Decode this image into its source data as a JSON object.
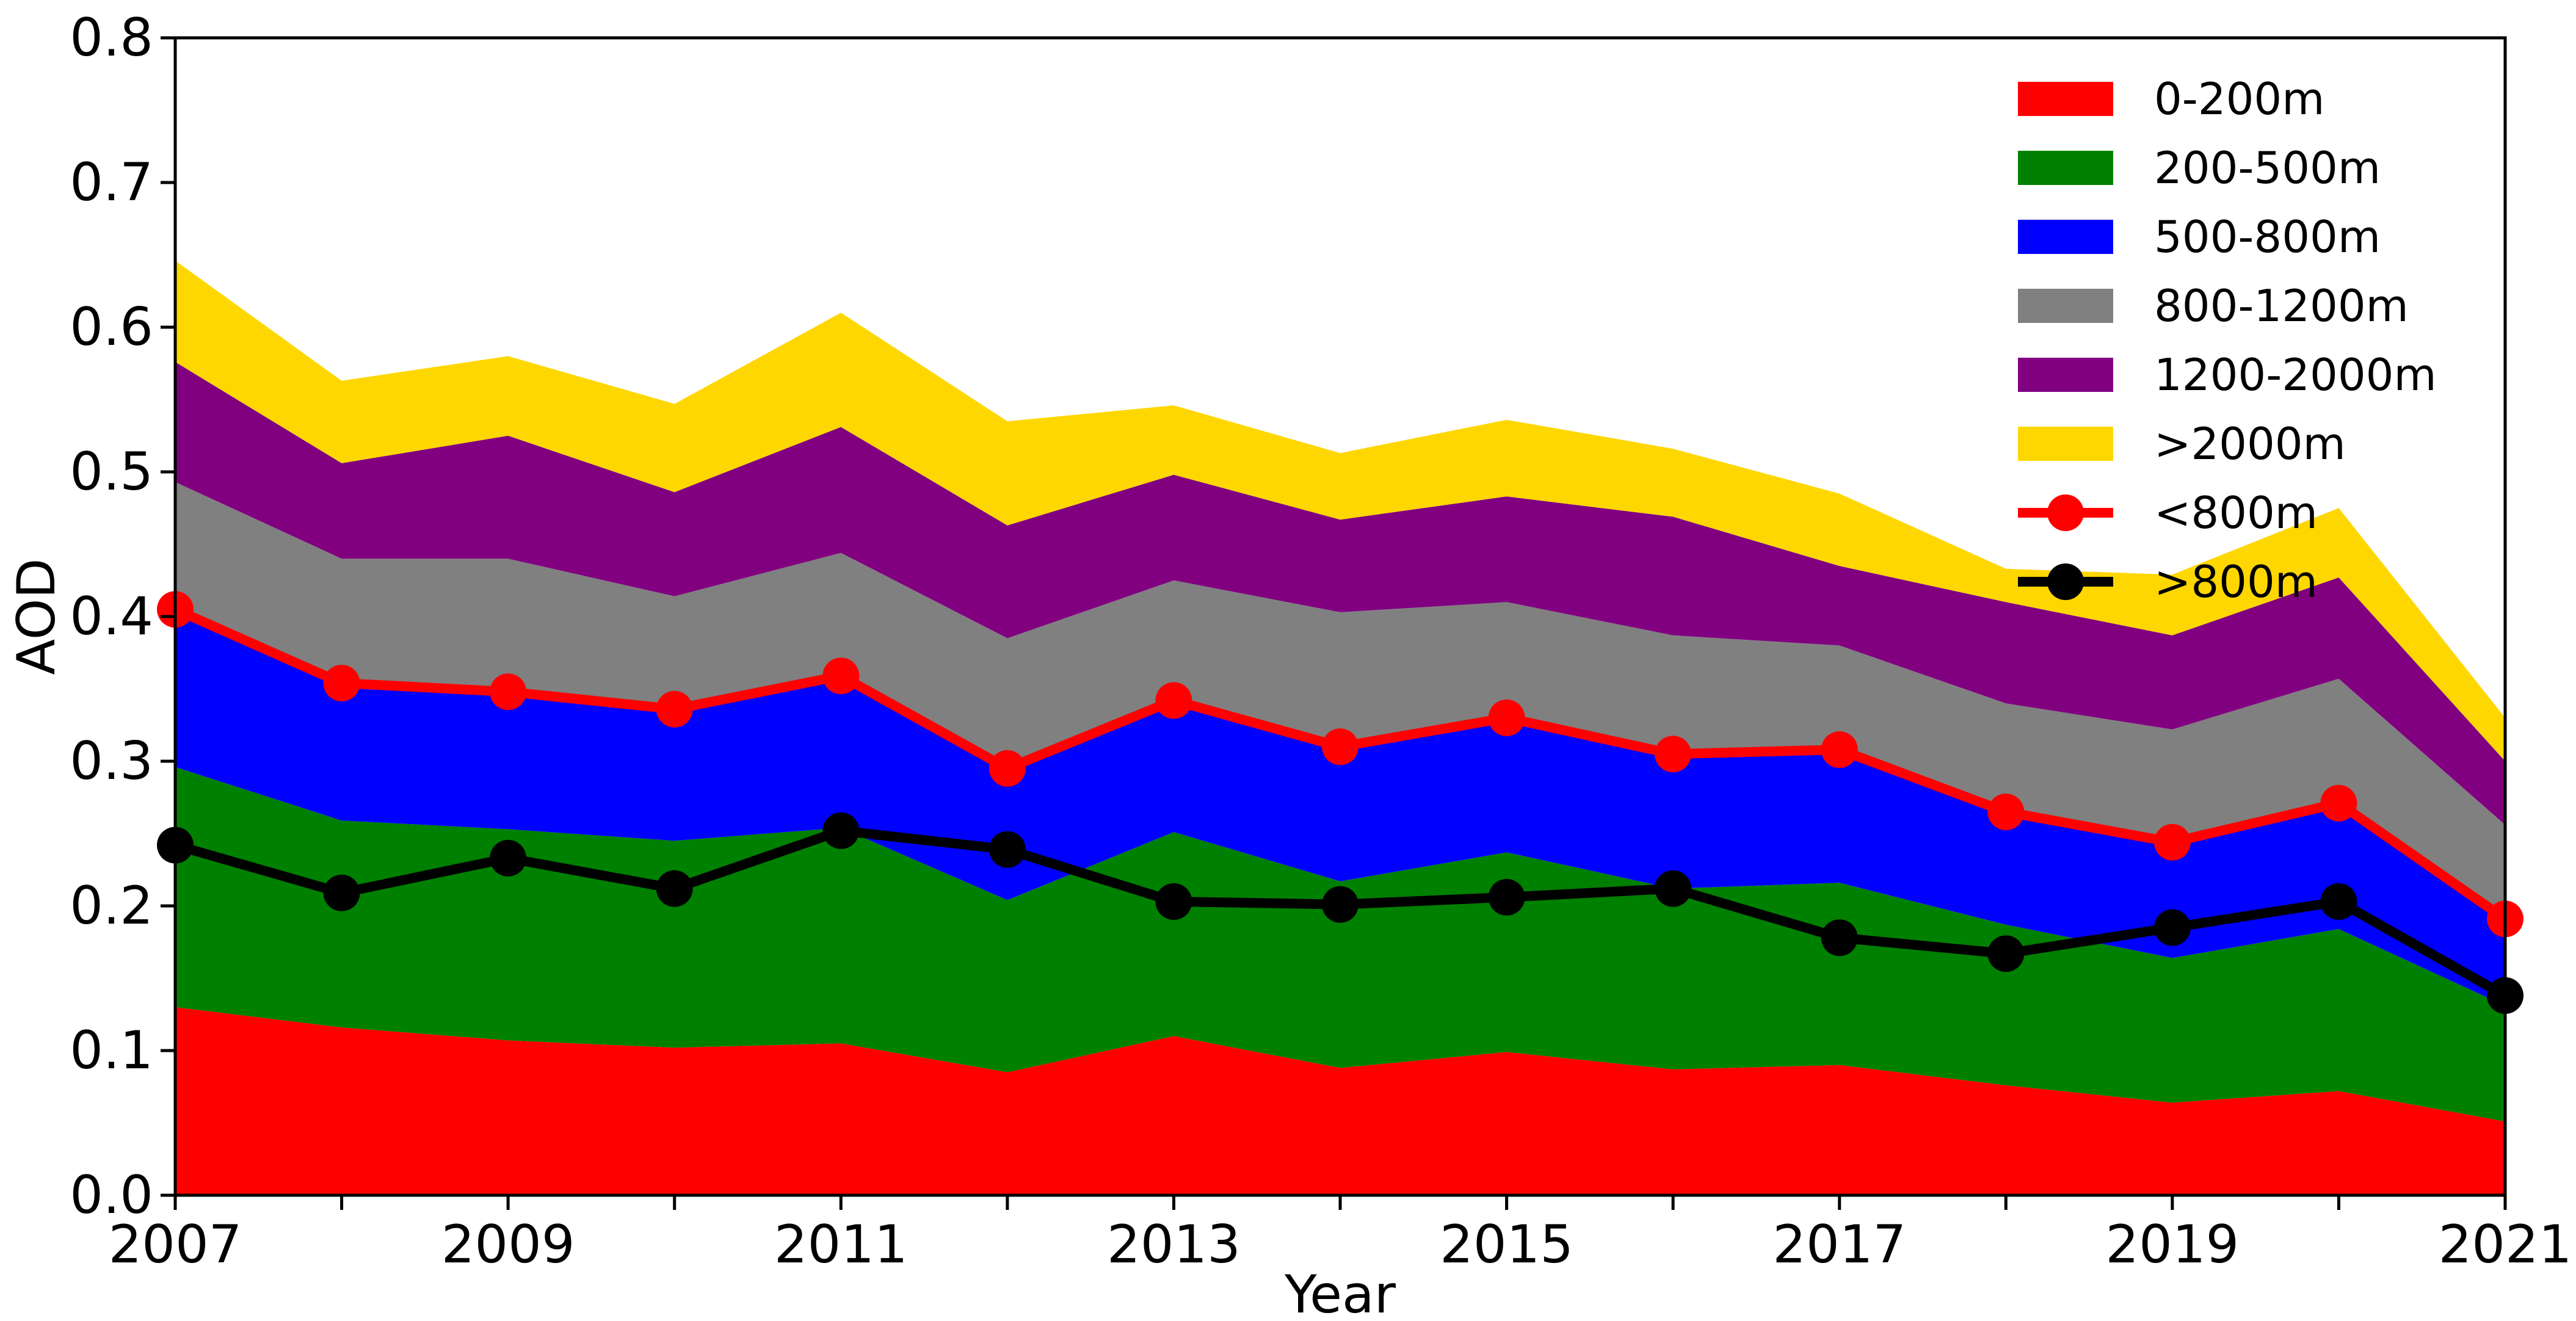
{
  "chart_data": {
    "type": "area",
    "stacked": true,
    "title": "",
    "xlabel": "Year",
    "ylabel": "AOD",
    "xlim": [
      2007,
      2021
    ],
    "ylim": [
      0.0,
      0.8
    ],
    "x": [
      2007,
      2008,
      2009,
      2010,
      2011,
      2012,
      2013,
      2014,
      2015,
      2016,
      2017,
      2018,
      2019,
      2020,
      2021
    ],
    "xticks": [
      "2007",
      "2009",
      "2011",
      "2013",
      "2015",
      "2017",
      "2019",
      "2021"
    ],
    "yticks": [
      "0.0",
      "0.1",
      "0.2",
      "0.3",
      "0.4",
      "0.5",
      "0.6",
      "0.7",
      "0.8"
    ],
    "legend_position": "top-right",
    "grid": false,
    "series": [
      {
        "name": "0-200m",
        "color": "#ff0000",
        "values": [
          0.13,
          0.116,
          0.107,
          0.102,
          0.105,
          0.085,
          0.11,
          0.088,
          0.099,
          0.087,
          0.09,
          0.076,
          0.064,
          0.072,
          0.051
        ]
      },
      {
        "name": "200-500m",
        "color": "#008000",
        "values": [
          0.166,
          0.143,
          0.146,
          0.143,
          0.149,
          0.119,
          0.141,
          0.129,
          0.138,
          0.125,
          0.126,
          0.111,
          0.1,
          0.112,
          0.08
        ]
      },
      {
        "name": "500-800m",
        "color": "#0000ff",
        "values": [
          0.109,
          0.095,
          0.095,
          0.091,
          0.105,
          0.091,
          0.091,
          0.093,
          0.093,
          0.093,
          0.092,
          0.078,
          0.08,
          0.087,
          0.06
        ]
      },
      {
        "name": "800-1200m",
        "color": "#808080",
        "values": [
          0.088,
          0.086,
          0.092,
          0.078,
          0.085,
          0.09,
          0.083,
          0.093,
          0.08,
          0.082,
          0.072,
          0.075,
          0.078,
          0.086,
          0.065
        ]
      },
      {
        "name": "1200-2000m",
        "color": "#800080",
        "values": [
          0.083,
          0.066,
          0.085,
          0.072,
          0.087,
          0.078,
          0.073,
          0.064,
          0.073,
          0.082,
          0.055,
          0.07,
          0.065,
          0.07,
          0.044
        ]
      },
      {
        "name": ">2000m",
        "color": "#ffd700",
        "values": [
          0.07,
          0.057,
          0.055,
          0.061,
          0.079,
          0.072,
          0.048,
          0.046,
          0.053,
          0.047,
          0.05,
          0.023,
          0.042,
          0.048,
          0.03
        ]
      }
    ],
    "lines": [
      {
        "name": "<800m",
        "color": "#ff0000",
        "marker": "circle",
        "values": [
          0.405,
          0.354,
          0.348,
          0.336,
          0.359,
          0.295,
          0.342,
          0.31,
          0.33,
          0.305,
          0.308,
          0.265,
          0.244,
          0.271,
          0.191
        ]
      },
      {
        "name": ">800m",
        "color": "#000000",
        "marker": "circle",
        "values": [
          0.242,
          0.209,
          0.233,
          0.212,
          0.252,
          0.239,
          0.203,
          0.201,
          0.206,
          0.212,
          0.178,
          0.167,
          0.185,
          0.203,
          0.138
        ]
      }
    ]
  }
}
